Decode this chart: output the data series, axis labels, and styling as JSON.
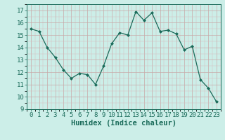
{
  "x": [
    0,
    1,
    2,
    3,
    4,
    5,
    6,
    7,
    8,
    9,
    10,
    11,
    12,
    13,
    14,
    15,
    16,
    17,
    18,
    19,
    20,
    21,
    22,
    23
  ],
  "y": [
    15.5,
    15.3,
    14.0,
    13.2,
    12.2,
    11.5,
    11.9,
    11.8,
    11.0,
    12.5,
    14.3,
    15.2,
    15.0,
    16.9,
    16.2,
    16.8,
    15.3,
    15.4,
    15.1,
    13.8,
    14.1,
    11.4,
    10.7,
    9.6
  ],
  "xlabel": "Humidex (Indice chaleur)",
  "ylim": [
    9,
    17.5
  ],
  "yticks": [
    9,
    10,
    11,
    12,
    13,
    14,
    15,
    16,
    17
  ],
  "xlim": [
    -0.5,
    23.5
  ],
  "xticks": [
    0,
    1,
    2,
    3,
    4,
    5,
    6,
    7,
    8,
    9,
    10,
    11,
    12,
    13,
    14,
    15,
    16,
    17,
    18,
    19,
    20,
    21,
    22,
    23
  ],
  "line_color": "#1a6b5a",
  "marker": "D",
  "marker_size": 2.0,
  "bg_color": "#cceee8",
  "grid_major_color": "#c8a8a8",
  "grid_minor_color": "#d8b8b8",
  "xlabel_fontsize": 7.5,
  "tick_fontsize": 6.5,
  "tick_color": "#1a6b5a"
}
